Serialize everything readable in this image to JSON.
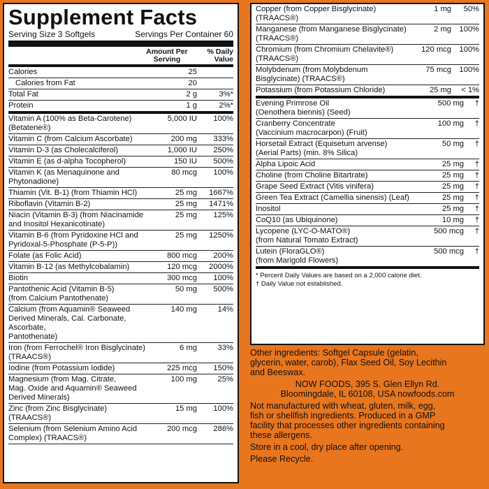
{
  "title": "Supplement Facts",
  "serving_size": "Serving Size 3 Softgels",
  "servings_per_container": "Servings Per Container 60",
  "col_amount": "Amount Per Serving",
  "col_dv": "% Daily Value",
  "left_rows": [
    {
      "name": "Calories",
      "amount": "25",
      "dv": ""
    },
    {
      "name": "Calories from Fat",
      "amount": "20",
      "dv": "",
      "indent": true
    },
    {
      "name": "Total Fat",
      "amount": "2 g",
      "dv": "3%*"
    },
    {
      "name": "Protein",
      "amount": "1 g",
      "dv": "2%*",
      "thick": true
    },
    {
      "name": "Vitamin A (100% as Beta-Carotene)\n(Betatene®)",
      "amount": "5,000 IU",
      "dv": "100%"
    },
    {
      "name": "Vitamin C (from Calcium Ascorbate)",
      "amount": "200 mg",
      "dv": "333%"
    },
    {
      "name": "Vitamin D-3 (as Cholecalciferol)",
      "amount": "1,000 IU",
      "dv": "250%"
    },
    {
      "name": "Vitamin E (as d-alpha Tocopherol)",
      "amount": "150 IU",
      "dv": "500%"
    },
    {
      "name": "Vitamin K (as Menaquinone and\nPhytonadione)",
      "amount": "80 mcg",
      "dv": "100%"
    },
    {
      "name": "Thiamin (Vit. B-1) (from Thiamin HCl)",
      "amount": "25 mg",
      "dv": "1667%"
    },
    {
      "name": "Riboflavin (Vitamin B-2)",
      "amount": "25 mg",
      "dv": "1471%"
    },
    {
      "name": "Niacin (Vitamin B-3) (from Niacinamide\nand Inositol Hexanicotinate)",
      "amount": "25 mg",
      "dv": "125%"
    },
    {
      "name": "Vitamin B-6 (from Pyridoxine HCl and\nPyridoxal-5-Phosphate (P-5-P))",
      "amount": "25 mg",
      "dv": "1250%"
    },
    {
      "name": "Folate (as Folic Acid)",
      "amount": "800 mcg",
      "dv": "200%"
    },
    {
      "name": "Vitamin B-12 (as Methylcobalamin)",
      "amount": "120 mcg",
      "dv": "2000%"
    },
    {
      "name": "Biotin",
      "amount": "300 mcg",
      "dv": "100%"
    },
    {
      "name": "Pantothenic Acid (Vitamin B-5)\n(from Calcium Pantothenate)",
      "amount": "50 mg",
      "dv": "500%"
    },
    {
      "name": "Calcium (from Aquamin® Seaweed\nDerived Minerals, Cal. Carbonate, Ascorbate,\nPantothenate)",
      "amount": "140 mg",
      "dv": "14%"
    },
    {
      "name": "Iron (from Ferrochel® Iron Bisglycinate)\n(TRAACS®)",
      "amount": "6 mg",
      "dv": "33%"
    },
    {
      "name": "Iodine (from Potassium Iodide)",
      "amount": "225 mcg",
      "dv": "150%"
    },
    {
      "name": "Magnesium (from Mag. Citrate,\nMag. Oxide and Aquamin® Seaweed Derived Minerals)",
      "amount": "100 mg",
      "dv": "25%"
    },
    {
      "name": "Zinc (from Zinc Bisglycinate) (TRAACS®)",
      "amount": "15 mg",
      "dv": "100%"
    },
    {
      "name": "Selenium (from Selenium Amino Acid\nComplex) (TRAACS®)",
      "amount": "200 mcg",
      "dv": "286%"
    }
  ],
  "right_rows_top": [
    {
      "name": "Copper (from Copper Bisglycinate)\n(TRAACS®)",
      "amount": "1 mg",
      "dv": "50%"
    },
    {
      "name": "Manganese (from Manganese Bisglycinate)\n(TRAACS®)",
      "amount": "2 mg",
      "dv": "100%"
    },
    {
      "name": "Chromium (from Chromium Chelavite®)\n(TRAACS®)",
      "amount": "120 mcg",
      "dv": "100%"
    },
    {
      "name": "Molybdenum (from Molybdenum\nBisglycinate) (TRAACS®)",
      "amount": "75 mcg",
      "dv": "100%"
    },
    {
      "name": "Potassium (from Potassium Chloride)",
      "amount": "25 mg",
      "dv": "< 1%",
      "thick": true
    }
  ],
  "right_rows_bottom": [
    {
      "name": "Evening Primrose Oil\n(Oenothera biennis) (Seed)",
      "amount": "500 mg",
      "dv": "†"
    },
    {
      "name": "Cranberry Concentrate\n(Vaccinium macrocarpon) (Fruit)",
      "amount": "100 mg",
      "dv": "†"
    },
    {
      "name": "Horsetail Extract (Equisetum arvense)\n(Aerial Parts) (min. 8% Silica)",
      "amount": "50 mg",
      "dv": "†"
    },
    {
      "name": "Alpha Lipoic Acid",
      "amount": "25 mg",
      "dv": "†"
    },
    {
      "name": "Choline (from Choline Bitartrate)",
      "amount": "25 mg",
      "dv": "†"
    },
    {
      "name": "Grape Seed Extract (Vitis vinifera)",
      "amount": "25 mg",
      "dv": "†"
    },
    {
      "name": "Green Tea Extract (Camellia sinensis) (Leaf)",
      "amount": "25 mg",
      "dv": "†"
    },
    {
      "name": "Inositol",
      "amount": "25 mg",
      "dv": "†"
    },
    {
      "name": "CoQ10 (as Ubiquinone)",
      "amount": "10 mg",
      "dv": "†"
    },
    {
      "name": "Lycopene (LYC-O-MATO®)\n(from Natural Tomato Extract)",
      "amount": "500 mcg",
      "dv": "†"
    },
    {
      "name": "Lutein (FloraGLO®)\n(from Marigold Flowers)",
      "amount": "500 mcg",
      "dv": "†",
      "thick": true
    }
  ],
  "footnote_1": "* Percent Daily Values are based on a 2,000 calorie diet.",
  "footnote_2": "† Daily Value not established.",
  "other_ingredients": "Other ingredients: Softgel Capsule (gelatin,\nglycerin, water, carob), Flax Seed Oil, Soy Lecithin\nand Beeswax.",
  "address": "NOW FOODS, 395 S. Glen Ellyn Rd.\nBloomingdale, IL 60108, USA    nowfoods.com",
  "allergen": "Not manufactured with wheat, gluten, milk, egg,\nfish or shellfish ingredients. Produced in a GMP\nfacility that processes other ingredients containing\nthese allergens.",
  "storage": "Store in a cool, dry place after opening.",
  "recycle": "Please Recycle."
}
